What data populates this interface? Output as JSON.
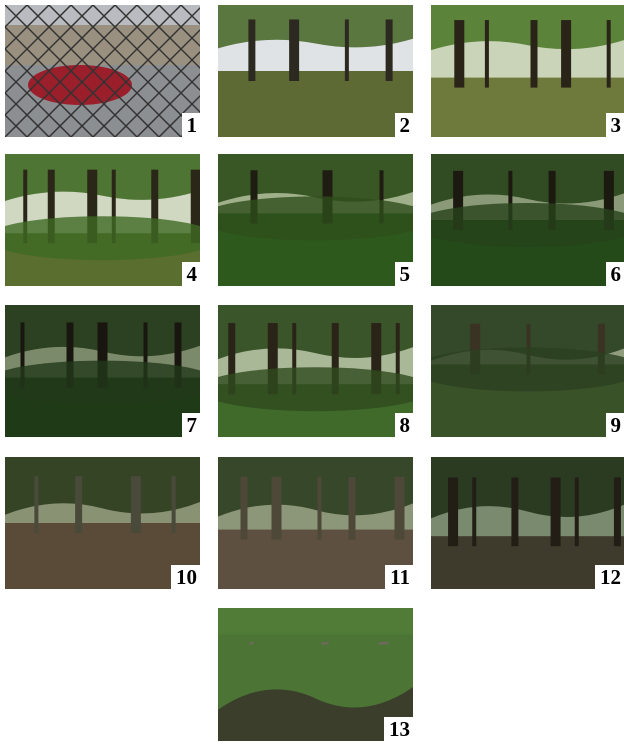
{
  "panels": [
    {
      "label": "1"
    },
    {
      "label": "2"
    },
    {
      "label": "3"
    },
    {
      "label": "4"
    },
    {
      "label": "5"
    },
    {
      "label": "6"
    },
    {
      "label": "7"
    },
    {
      "label": "8"
    },
    {
      "label": "9"
    },
    {
      "label": "10"
    },
    {
      "label": "11"
    },
    {
      "label": "12"
    },
    {
      "label": "13"
    }
  ]
}
